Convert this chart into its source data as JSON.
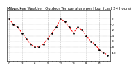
{
  "title": "Milwaukee Weather  Outdoor Temperature per Hour (Last 24 Hours)",
  "hours": [
    0,
    1,
    2,
    3,
    4,
    5,
    6,
    7,
    8,
    9,
    10,
    11,
    12,
    13,
    14,
    15,
    16,
    17,
    18,
    19,
    20,
    21,
    22,
    23
  ],
  "temps": [
    2,
    0,
    -1,
    -3,
    -5,
    -7,
    -8,
    -8,
    -7,
    -5,
    -3,
    -1,
    2,
    1,
    -1,
    -3,
    -1,
    -2,
    -4,
    -6,
    -7,
    -9,
    -10,
    -11
  ],
  "line_color": "#ff0000",
  "marker_color": "#000000",
  "bg_color": "#ffffff",
  "grid_color": "#888888",
  "title_fontsize": 3.8,
  "tick_fontsize": 3.0,
  "ylim": [
    -13,
    5
  ],
  "yticks": [
    2,
    0,
    -2,
    -4,
    -6,
    -8,
    -10
  ],
  "xtick_every": 3,
  "vgrid_positions": [
    0,
    3,
    6,
    9,
    12,
    15,
    18,
    21
  ]
}
